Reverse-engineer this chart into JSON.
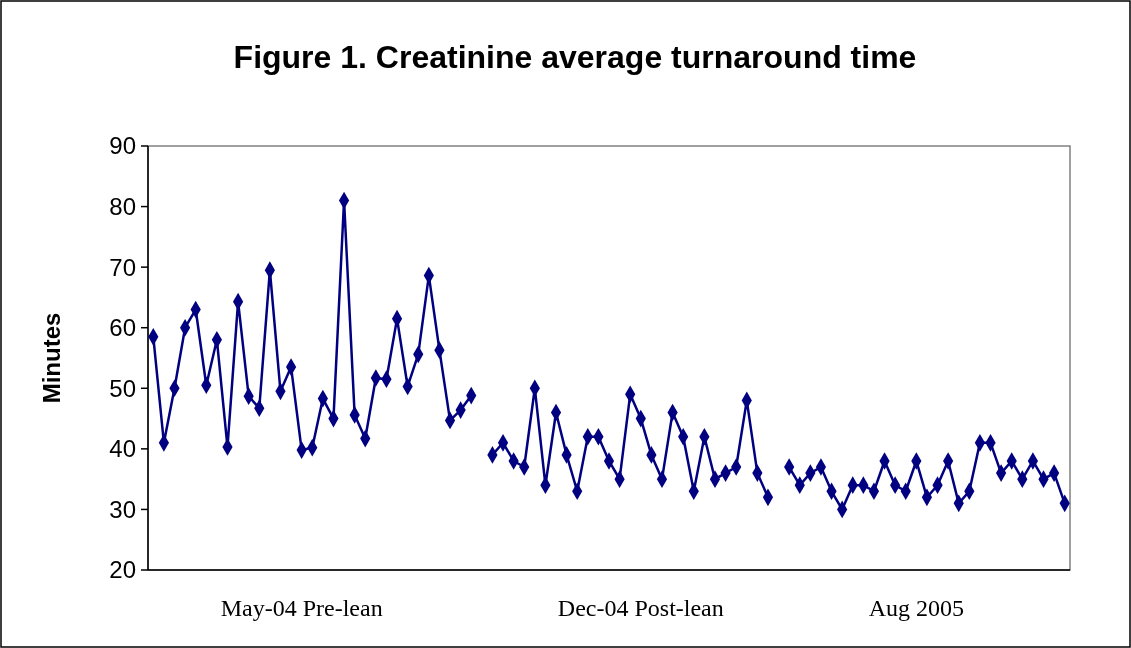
{
  "chart_data": {
    "type": "line",
    "title": "Figure 1. Creatinine average turnaround time",
    "ylabel": "Minutes",
    "categories": [
      null,
      null,
      null,
      null,
      null,
      null,
      null,
      null,
      null,
      null,
      null,
      null,
      null,
      null,
      "May-04 Pre-lean",
      null,
      null,
      null,
      null,
      null,
      null,
      null,
      null,
      null,
      null,
      null,
      null,
      null,
      null,
      null,
      null,
      null,
      null,
      null,
      null,
      null,
      null,
      null,
      null,
      null,
      null,
      null,
      null,
      null,
      null,
      null,
      "Dec-04 Post-lean",
      null,
      null,
      null,
      null,
      null,
      null,
      null,
      null,
      null,
      null,
      null,
      null,
      null,
      null,
      null,
      null,
      null,
      null,
      null,
      null,
      null,
      null,
      null,
      null,
      null,
      "Aug 2005",
      null,
      null,
      null,
      null,
      null,
      null,
      null,
      null,
      null,
      null,
      null,
      null,
      null,
      null
    ],
    "series": [
      {
        "color": "#000080",
        "values": [
          58.5,
          41,
          50,
          60,
          63,
          50.5,
          58,
          40.3,
          64.3,
          48.7,
          46.7,
          69.5,
          49.5,
          53.5,
          39.8,
          40.2,
          48.3,
          45,
          81,
          45.6,
          41.7,
          51.7,
          51.5,
          61.5,
          50.3,
          55.6,
          68.6,
          56.3,
          44.7,
          46.4,
          48.8,
          null,
          39,
          41,
          38,
          37,
          50,
          34,
          46,
          39,
          33,
          42,
          42,
          38,
          35,
          49,
          45,
          39,
          35,
          46,
          42,
          33,
          42,
          35,
          36,
          37,
          48,
          36,
          32,
          null,
          37,
          34,
          36,
          37,
          33,
          30,
          34,
          34,
          33,
          38,
          34,
          33,
          38,
          32,
          34,
          38,
          31,
          33,
          41,
          41,
          36,
          38,
          35,
          38,
          35,
          36,
          31
        ]
      }
    ],
    "ylim": [
      20,
      90
    ],
    "yticks": [
      20,
      30,
      40,
      50,
      60,
      70,
      80,
      90
    ],
    "grid": false,
    "marker": "diamond",
    "line_style": "solid"
  }
}
